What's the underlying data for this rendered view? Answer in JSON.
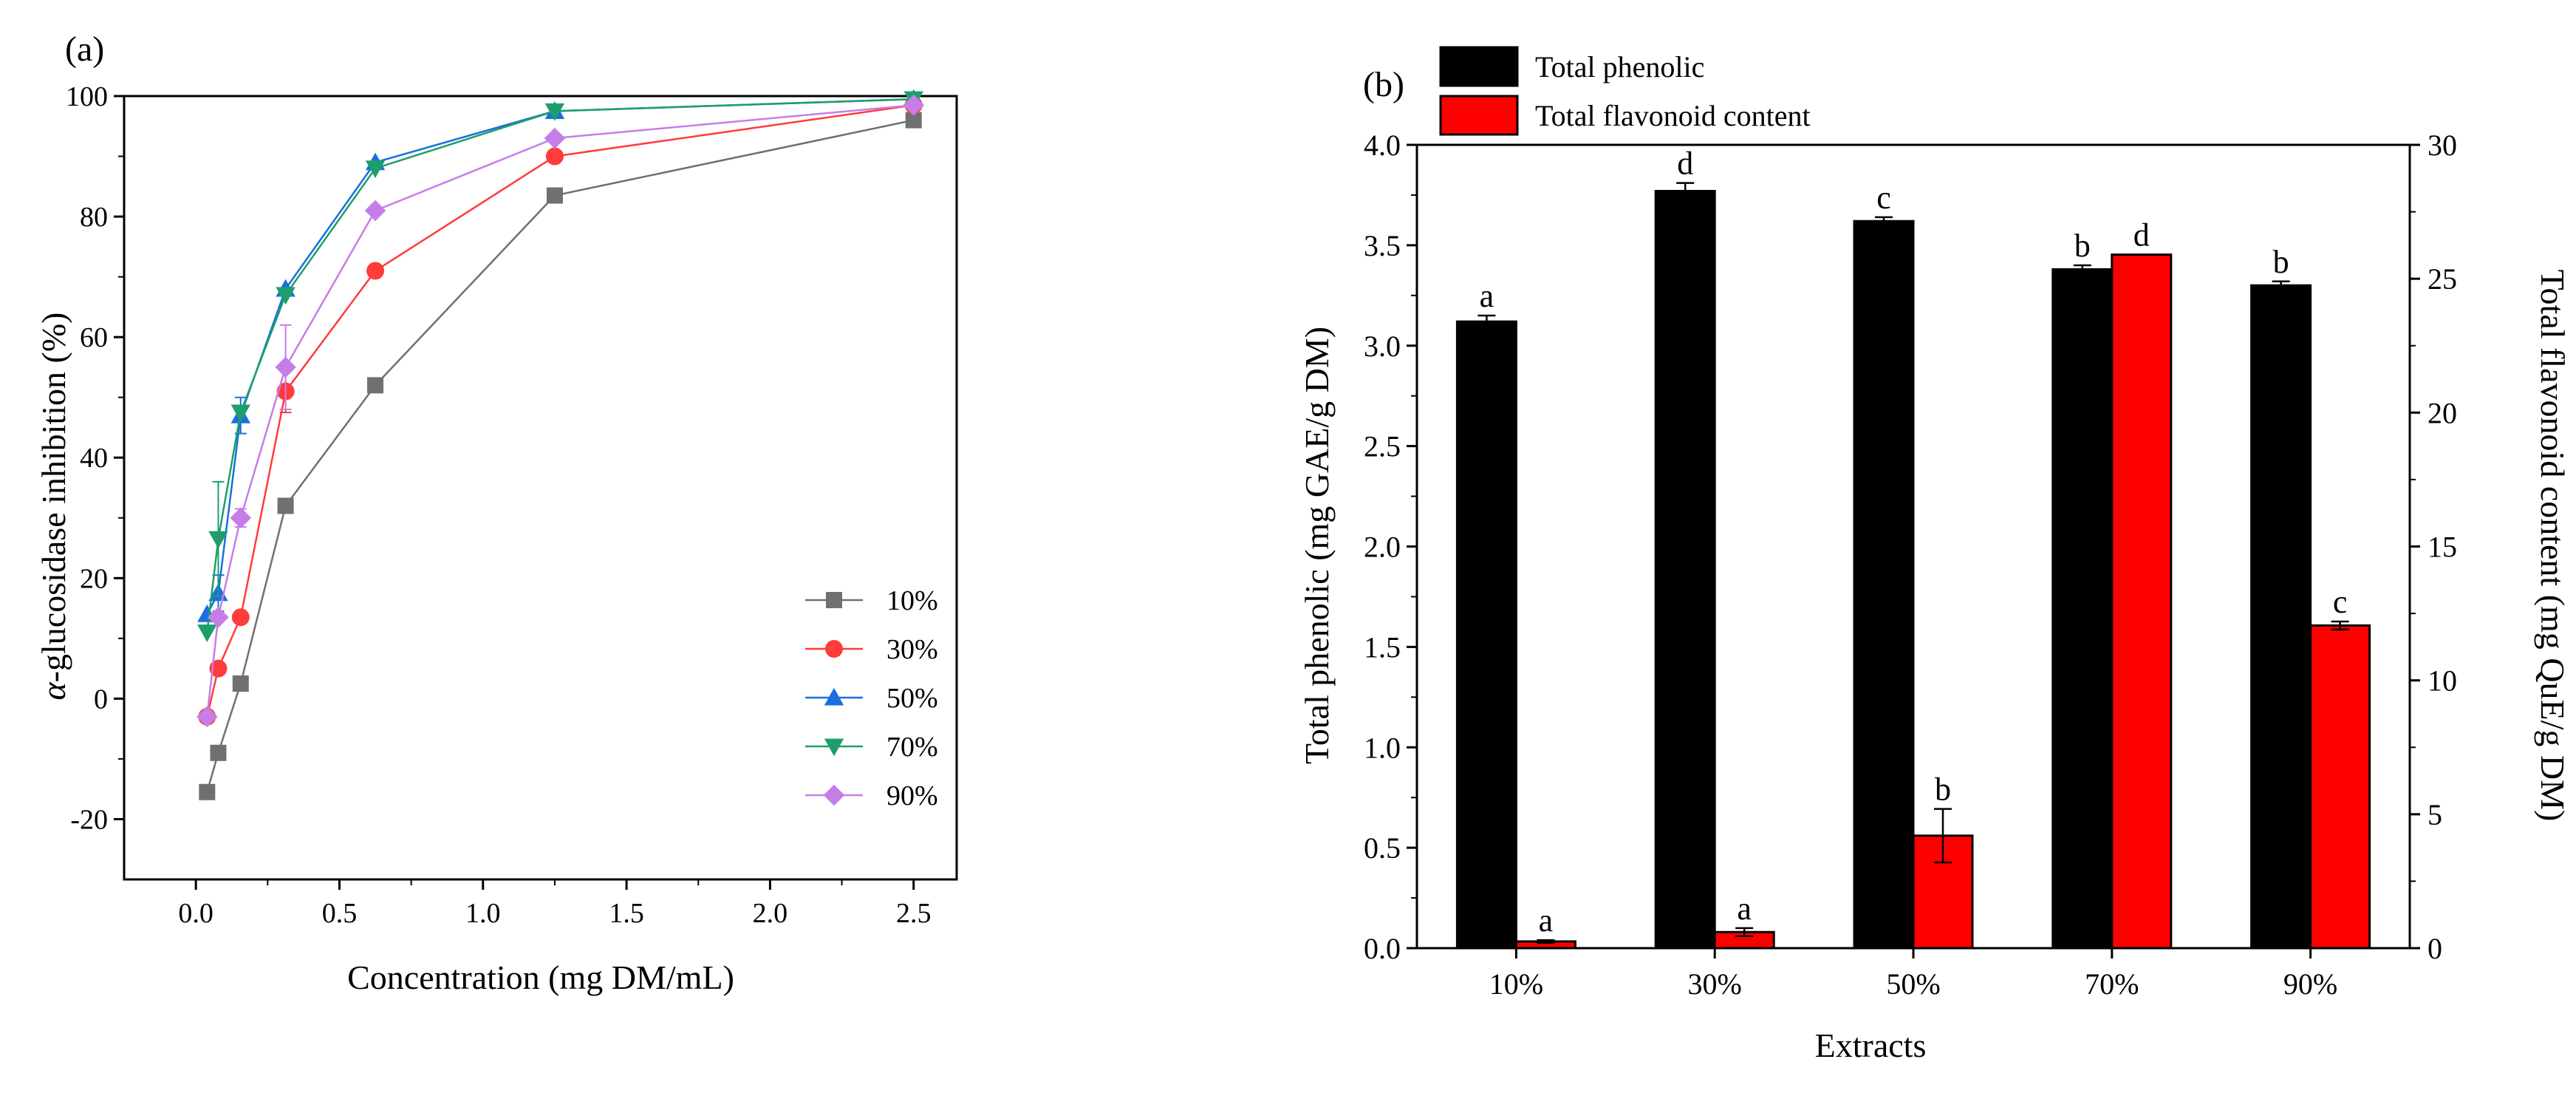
{
  "chart_data": [
    {
      "panel_label": "(a)",
      "type": "line",
      "xlabel": "Concentration (mg DM/mL)",
      "ylabel_italic": "α",
      "ylabel_rest": "-glucosidase inhibition (%)",
      "xlim": [
        -0.25,
        2.65
      ],
      "ylim": [
        -30,
        100
      ],
      "xticks": [
        0.0,
        0.5,
        1.0,
        1.5,
        2.0,
        2.5
      ],
      "xtick_labels": [
        "0.0",
        "0.5",
        "1.0",
        "1.5",
        "2.0",
        "2.5"
      ],
      "yticks": [
        -20,
        0,
        20,
        40,
        60,
        80,
        100
      ],
      "ytick_labels": [
        "-20",
        "0",
        "20",
        "40",
        "60",
        "80",
        "100"
      ],
      "legend_position": "lower-right",
      "series": [
        {
          "name": "10%",
          "color": "#707070",
          "marker": "square",
          "x": [
            0.039,
            0.078,
            0.156,
            0.3125,
            0.625,
            1.25,
            2.5
          ],
          "y": [
            -15.5,
            -9,
            2.5,
            32,
            52,
            83.5,
            96
          ],
          "err": [
            0,
            0,
            0,
            0,
            0,
            0,
            0
          ]
        },
        {
          "name": "30%",
          "color": "#ff3b3b",
          "marker": "circle",
          "x": [
            0.039,
            0.078,
            0.156,
            0.3125,
            0.625,
            1.25,
            2.5
          ],
          "y": [
            -3,
            5,
            13.5,
            51,
            71,
            90,
            98.5
          ],
          "err": [
            0,
            0,
            0,
            3.5,
            0,
            0,
            0
          ]
        },
        {
          "name": "50%",
          "color": "#1a6fe0",
          "marker": "triangle-up",
          "x": [
            0.039,
            0.078,
            0.156,
            0.3125,
            0.625,
            1.25,
            2.5
          ],
          "y": [
            14,
            17.5,
            47,
            68,
            89,
            97.5,
            99.5
          ],
          "err": [
            0,
            3,
            3,
            0,
            0,
            0,
            0
          ]
        },
        {
          "name": "70%",
          "color": "#1e9e6a",
          "marker": "triangle-down",
          "x": [
            0.039,
            0.078,
            0.156,
            0.3125,
            0.625,
            1.25,
            2.5
          ],
          "y": [
            11,
            26.5,
            47.5,
            67,
            88,
            97.5,
            99.5
          ],
          "err": [
            0,
            9.5,
            0,
            0,
            0,
            0,
            0
          ]
        },
        {
          "name": "90%",
          "color": "#c77de8",
          "marker": "diamond",
          "x": [
            0.039,
            0.078,
            0.156,
            0.3125,
            0.625,
            1.25,
            2.5
          ],
          "y": [
            -3,
            13.5,
            30,
            55,
            81,
            93,
            98.5
          ],
          "err": [
            0,
            0,
            1.5,
            7,
            0,
            0,
            0
          ]
        }
      ]
    },
    {
      "panel_label": "(b)",
      "type": "bar",
      "xlabel": "Extracts",
      "ylabel": "Total phenolic (mg GAE/g DM)",
      "ylabel_right": "Total flavonoid content (mg QuE/g DM)",
      "categories": [
        "10%",
        "30%",
        "50%",
        "70%",
        "90%"
      ],
      "ylim": [
        0,
        4.0
      ],
      "yticks": [
        0.0,
        0.5,
        1.0,
        1.5,
        2.0,
        2.5,
        3.0,
        3.5,
        4.0
      ],
      "ytick_labels": [
        "0.0",
        "0.5",
        "1.0",
        "1.5",
        "2.0",
        "2.5",
        "3.0",
        "3.5",
        "4.0"
      ],
      "ylim_right": [
        0,
        30
      ],
      "yticks_right": [
        0,
        5,
        10,
        15,
        20,
        25,
        30
      ],
      "ytick_labels_right": [
        "0",
        "5",
        "10",
        "15",
        "20",
        "25",
        "30"
      ],
      "legend_position": "top-left",
      "series": [
        {
          "name": "Total phenolic",
          "axis": "left",
          "color": "#000000",
          "values": [
            3.12,
            3.77,
            3.62,
            3.38,
            3.3
          ],
          "err": [
            0.03,
            0.04,
            0.02,
            0.02,
            0.02
          ],
          "letters": [
            "a",
            "d",
            "c",
            "b",
            "b"
          ]
        },
        {
          "name": "Total flavonoid content",
          "axis": "right",
          "color": "#ff0000",
          "values": [
            0.25,
            0.6,
            4.2,
            25.9,
            12.05
          ],
          "err": [
            0.05,
            0.15,
            1.0,
            0.0,
            0.15
          ],
          "letters": [
            "a",
            "a",
            "b",
            "d",
            "c"
          ]
        }
      ]
    }
  ]
}
